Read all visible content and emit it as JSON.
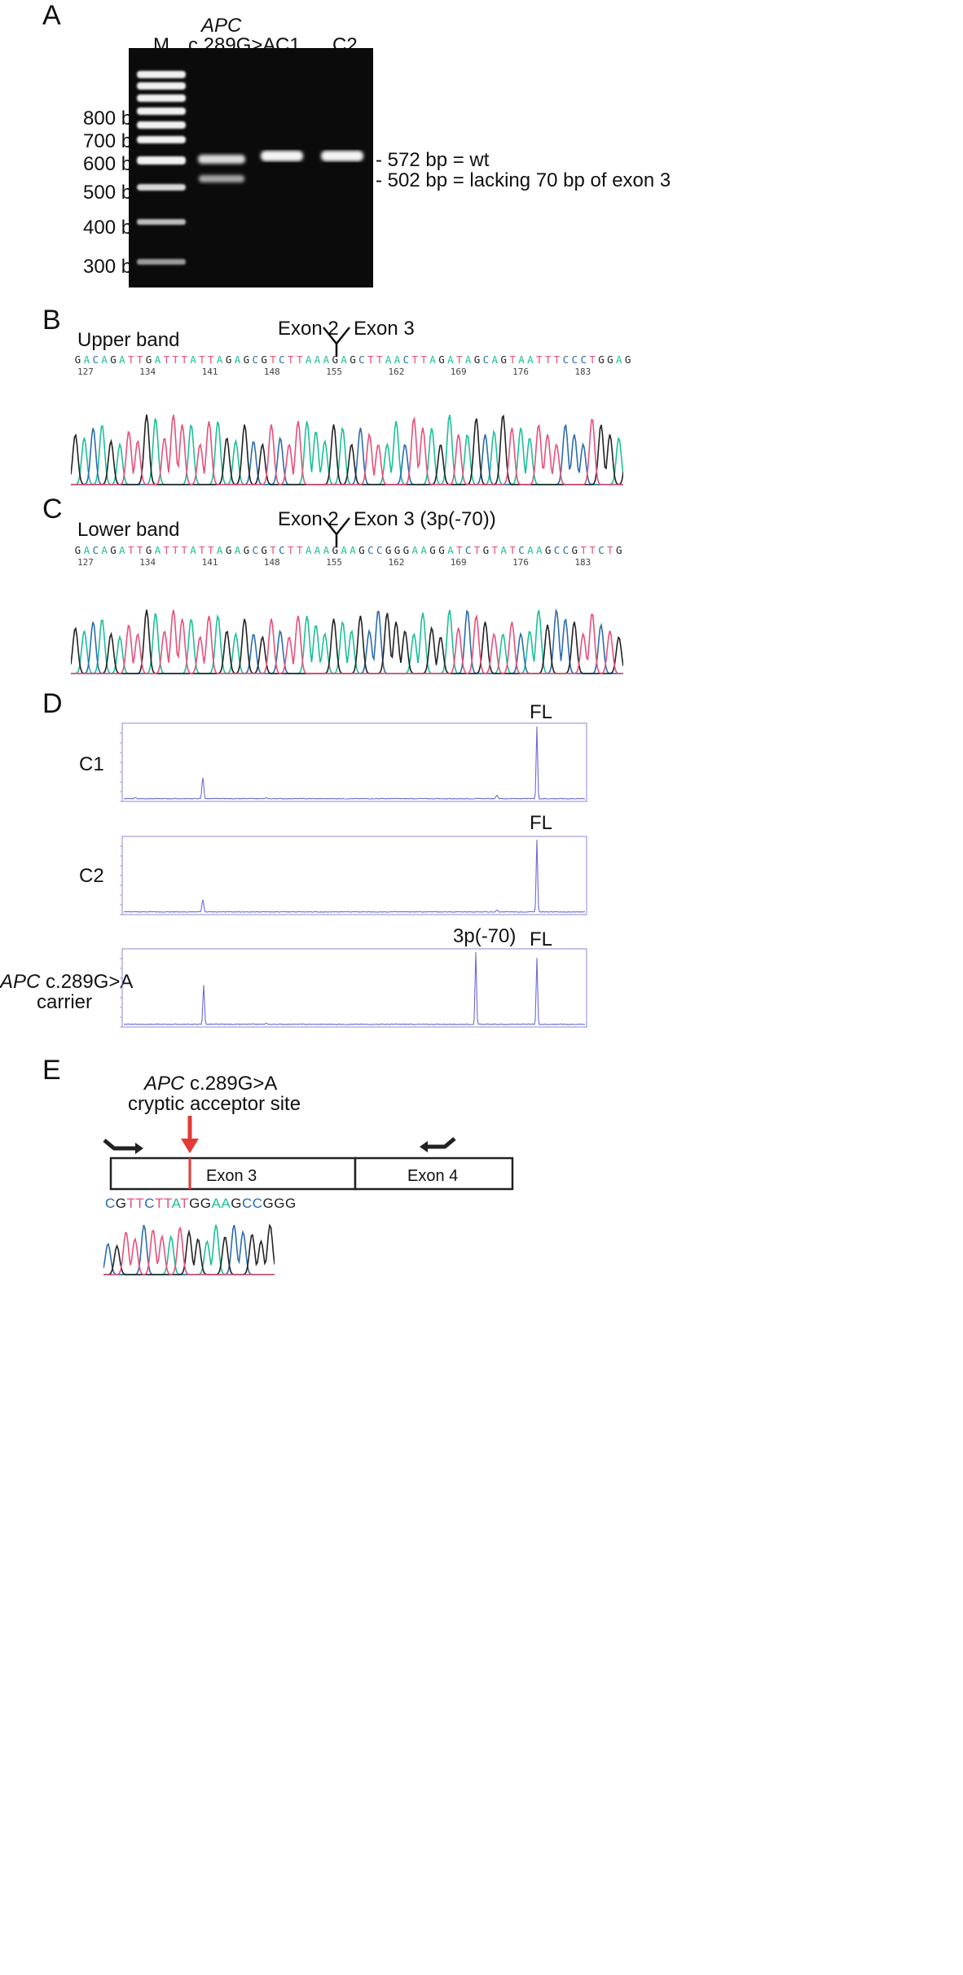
{
  "panels": {
    "A": {
      "letter": "A",
      "lane_M": "M",
      "lane_APC_gene": "APC",
      "lane_APC_variant": "c.289G>A",
      "lane_C1": "C1",
      "lane_C2": "C2",
      "markers": [
        "800 bp",
        "700 bp",
        "600 bp",
        "500 bp",
        "400 bp",
        "300 bp"
      ],
      "band_wt": "- 572 bp = wt",
      "band_lacking": "- 502 bp = lacking 70 bp of exon 3"
    },
    "B": {
      "letter": "B",
      "band": "Upper band",
      "exon_left": "Exon 2",
      "exon_right": "Exon 3",
      "sequence": "GACAGATTGATTTATTAGAGCGTCTTAAAGAGCTTAACTTAGATAGCAGTAATTTCCCTGGAG",
      "positions": [
        "127",
        "134",
        "141",
        "148",
        "155",
        "162",
        "169",
        "176",
        "183"
      ]
    },
    "C": {
      "letter": "C",
      "band": "Lower band",
      "exon_left": "Exon 2",
      "exon_right": "Exon 3 (3p(-70))",
      "sequence": "GACAGATTGATTTATTAGAGCGTCTTAAAGAAGCCGGGAAGGATCTGTATCAAGCCGTTCTG",
      "positions": [
        "127",
        "134",
        "141",
        "148",
        "155",
        "162",
        "169",
        "176",
        "183"
      ]
    },
    "D": {
      "letter": "D",
      "rows": [
        {
          "label": "C1",
          "label_gene": "",
          "label_rest": "",
          "peak_fl": "FL",
          "peak_3p": ""
        },
        {
          "label": "C2",
          "label_gene": "",
          "label_rest": "",
          "peak_fl": "FL",
          "peak_3p": ""
        },
        {
          "label": "",
          "label_gene": "APC",
          "label_rest": "c.289G>A",
          "label_line2": "carrier",
          "peak_fl": "FL",
          "peak_3p": "3p(-70)"
        }
      ]
    },
    "E": {
      "letter": "E",
      "title_gene": "APC",
      "title_variant": "c.289G>A",
      "title_line2": "cryptic acceptor site",
      "exon3": "Exon 3",
      "exon4": "Exon 4",
      "sequence": "CGTTCTTATGGAAGCCGGG"
    }
  },
  "base_colors": {
    "A": "#1bbf9a",
    "C": "#2b6cb0",
    "G": "#222222",
    "T": "#e8507a"
  }
}
